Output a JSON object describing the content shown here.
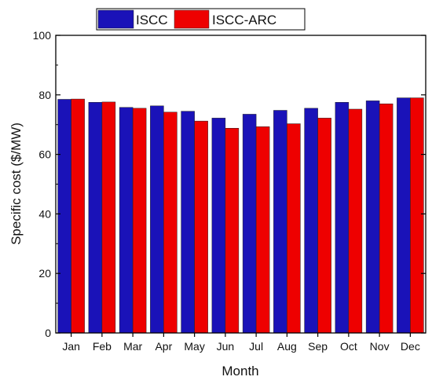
{
  "chart_data": {
    "type": "bar",
    "categories": [
      "Jan",
      "Feb",
      "Mar",
      "Apr",
      "May",
      "Jun",
      "Jul",
      "Aug",
      "Sep",
      "Oct",
      "Nov",
      "Dec"
    ],
    "series": [
      {
        "name": "ISCC",
        "color": "#1a12b8",
        "values": [
          78.5,
          77.5,
          75.8,
          76.3,
          74.5,
          72.2,
          73.5,
          74.8,
          75.5,
          77.5,
          78.0,
          79.0
        ]
      },
      {
        "name": "ISCC-ARC",
        "color": "#ee0000",
        "values": [
          78.6,
          77.6,
          75.5,
          74.2,
          71.2,
          68.8,
          69.3,
          70.3,
          72.2,
          75.2,
          77.0,
          79.0
        ]
      }
    ],
    "xlabel": "Month",
    "ylabel": "Specific cost ($/MW)",
    "ylim": [
      0,
      100
    ],
    "yticks": [
      0,
      20,
      40,
      60,
      80,
      100
    ],
    "legend_position": "top",
    "grid": false
  }
}
